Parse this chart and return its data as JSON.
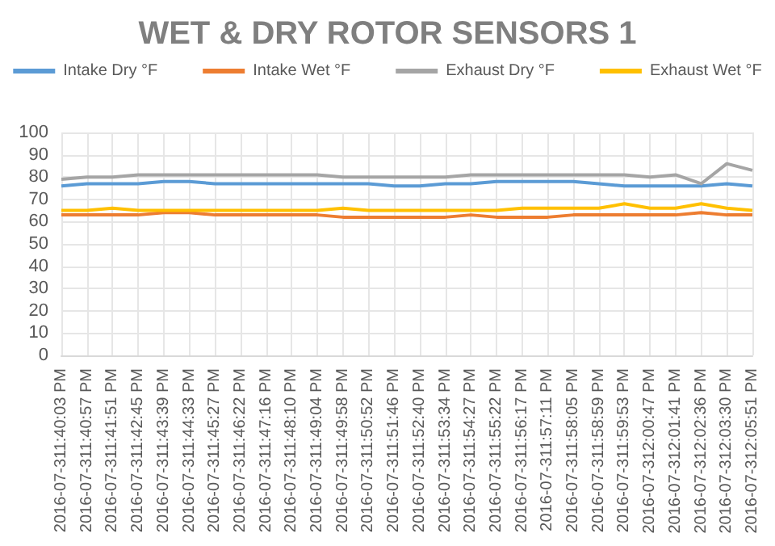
{
  "chart_data": {
    "type": "line",
    "title": "WET & DRY ROTOR SENSORS 1",
    "categories": [
      "2016-07-311:40:03 PM",
      "2016-07-311:40:57 PM",
      "2016-07-311:41:51 PM",
      "2016-07-311:42:45 PM",
      "2016-07-311:43:39 PM",
      "2016-07-311:44:33 PM",
      "2016-07-311:45:27 PM",
      "2016-07-311:46:22 PM",
      "2016-07-311:47:16 PM",
      "2016-07-311:48:10 PM",
      "2016-07-311:49:04 PM",
      "2016-07-311:49:58 PM",
      "2016-07-311:50:52 PM",
      "2016-07-311:51:46 PM",
      "2016-07-311:52:40 PM",
      "2016-07-311:53:34 PM",
      "2016-07-311:54:27 PM",
      "2016-07-311:55:22 PM",
      "2016-07-311:56:17 PM",
      "2016-07-311:57:11 PM",
      "2016-07-311:58:05 PM",
      "2016-07-311:58:59 PM",
      "2016-07-311:59:53 PM",
      "2016-07-312:00:47 PM",
      "2016-07-312:01:41 PM",
      "2016-07-312:02:36 PM",
      "2016-07-312:03:30 PM",
      "2016-07-312:05:51 PM"
    ],
    "series": [
      {
        "name": "Intake Dry °F",
        "color": "#5b9bd5",
        "values": [
          76,
          77,
          77,
          77,
          78,
          78,
          77,
          77,
          77,
          77,
          77,
          77,
          77,
          76,
          76,
          77,
          77,
          78,
          78,
          78,
          78,
          77,
          76,
          76,
          76,
          76,
          77,
          76
        ]
      },
      {
        "name": "Intake Wet °F",
        "color": "#ed7d31",
        "values": [
          63,
          63,
          63,
          63,
          64,
          64,
          63,
          63,
          63,
          63,
          63,
          62,
          62,
          62,
          62,
          62,
          63,
          62,
          62,
          62,
          63,
          63,
          63,
          63,
          63,
          64,
          63,
          63
        ]
      },
      {
        "name": "Exhaust Dry °F",
        "color": "#a5a5a5",
        "values": [
          79,
          80,
          80,
          81,
          81,
          81,
          81,
          81,
          81,
          81,
          81,
          80,
          80,
          80,
          80,
          80,
          81,
          81,
          81,
          81,
          81,
          81,
          81,
          80,
          81,
          77,
          86,
          83
        ]
      },
      {
        "name": "Exhaust Wet °F",
        "color": "#ffc000",
        "values": [
          65,
          65,
          66,
          65,
          65,
          65,
          65,
          65,
          65,
          65,
          65,
          66,
          65,
          65,
          65,
          65,
          65,
          65,
          66,
          66,
          66,
          66,
          68,
          66,
          66,
          68,
          66,
          65
        ]
      }
    ],
    "ylim": [
      0,
      100
    ],
    "yticks": [
      0,
      10,
      20,
      30,
      40,
      50,
      60,
      70,
      80,
      90,
      100
    ],
    "grid": true,
    "legend": "top",
    "marker": "none",
    "line_style": "solid"
  }
}
